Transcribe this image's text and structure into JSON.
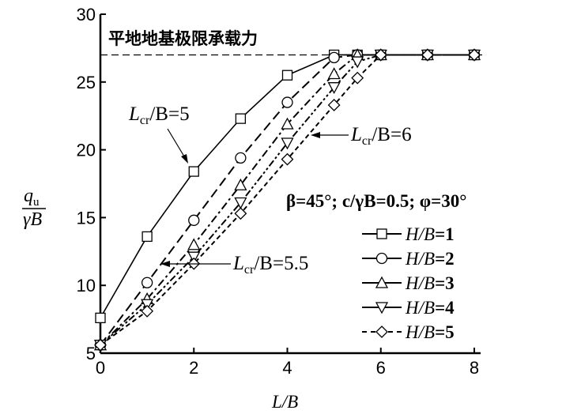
{
  "chart_data": {
    "type": "line",
    "title": "",
    "xlabel": "L/B",
    "ylabel_num": "q",
    "ylabel_num_sub": "u",
    "ylabel_den": "γB",
    "xlim": [
      0,
      8
    ],
    "ylim": [
      5,
      30
    ],
    "xticks": [
      0,
      2,
      4,
      6,
      8
    ],
    "yticks": [
      5,
      10,
      15,
      20,
      25,
      30
    ],
    "grid": false,
    "legend_placement": "bottom-right",
    "reference_line": {
      "value": 27,
      "label": "平地地基极限承载力"
    },
    "parameters_text": "β=45°; c/γB=0.5; φ=30°",
    "annotations": [
      {
        "pre": "L",
        "sub": "cr",
        "post": "/B=5"
      },
      {
        "pre": "L",
        "sub": "cr",
        "post": "/B=6"
      },
      {
        "pre": "L",
        "sub": "cr",
        "post": "/B=5.5"
      }
    ],
    "x": [
      0,
      1,
      2,
      3,
      4,
      5,
      5.5,
      6,
      7,
      8
    ],
    "series": [
      {
        "name": "H/B=1",
        "marker": "square",
        "style": "solid",
        "values": [
          7.6,
          13.6,
          18.4,
          22.3,
          25.5,
          27.0,
          27.0,
          27.0,
          27.0,
          27.0
        ]
      },
      {
        "name": "H/B=2",
        "marker": "circle",
        "style": "long-dash",
        "values": [
          5.6,
          10.2,
          14.8,
          19.4,
          23.5,
          26.8,
          27.0,
          27.0,
          27.0,
          27.0
        ]
      },
      {
        "name": "H/B=3",
        "marker": "triangle-up",
        "style": "dash-dot",
        "values": [
          5.6,
          9.0,
          13.0,
          17.4,
          21.9,
          25.6,
          27.0,
          27.0,
          27.0,
          27.0
        ]
      },
      {
        "name": "H/B=4",
        "marker": "triangle-down",
        "style": "dash-dot-dot",
        "values": [
          5.6,
          8.6,
          12.1,
          16.1,
          20.5,
          24.6,
          26.5,
          27.0,
          27.0,
          27.0
        ]
      },
      {
        "name": "H/B=5",
        "marker": "diamond",
        "style": "short-dash",
        "values": [
          5.6,
          8.1,
          11.6,
          15.3,
          19.3,
          23.3,
          25.3,
          27.0,
          27.0,
          27.0
        ]
      }
    ]
  }
}
